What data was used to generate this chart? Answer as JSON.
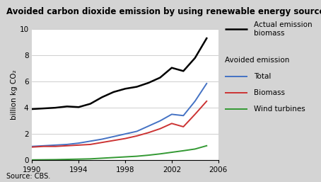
{
  "title": "Avoided carbon dioxide emission by using renewable energy sources",
  "ylabel": "billion kg CO₂",
  "source": "Source: CBS.",
  "years": [
    1990,
    1991,
    1992,
    1993,
    1994,
    1995,
    1996,
    1997,
    1998,
    1999,
    2000,
    2001,
    2002,
    2003,
    2004,
    2005
  ],
  "actual_emission_biomass": [
    3.9,
    3.95,
    4.0,
    4.1,
    4.05,
    4.3,
    4.8,
    5.2,
    5.45,
    5.6,
    5.9,
    6.3,
    7.05,
    6.8,
    7.8,
    9.3
  ],
  "avoided_total": [
    1.05,
    1.1,
    1.15,
    1.2,
    1.3,
    1.45,
    1.6,
    1.8,
    2.0,
    2.2,
    2.6,
    3.0,
    3.5,
    3.4,
    4.5,
    5.85
  ],
  "avoided_biomass": [
    1.0,
    1.05,
    1.05,
    1.1,
    1.15,
    1.2,
    1.35,
    1.5,
    1.65,
    1.85,
    2.1,
    2.4,
    2.8,
    2.55,
    3.5,
    4.5
  ],
  "avoided_wind": [
    0.02,
    0.03,
    0.04,
    0.06,
    0.08,
    0.1,
    0.15,
    0.2,
    0.25,
    0.3,
    0.38,
    0.48,
    0.6,
    0.72,
    0.85,
    1.1
  ],
  "color_actual": "#000000",
  "color_total": "#4472c4",
  "color_biomass": "#cc3333",
  "color_wind": "#339933",
  "bg_color": "#d4d4d4",
  "plot_bg": "#ffffff",
  "ylim": [
    0,
    10
  ],
  "yticks": [
    0,
    2,
    4,
    6,
    8,
    10
  ],
  "xticks": [
    1990,
    1994,
    1998,
    2002,
    2006
  ],
  "legend_actual": "Actual emission\nbiomass",
  "legend_header": "Avoided emission",
  "legend_total": "Total",
  "legend_biomass": "Biomass",
  "legend_wind": "Wind turbines",
  "title_fontsize": 8.5,
  "tick_fontsize": 7.5,
  "legend_fontsize": 7.5
}
